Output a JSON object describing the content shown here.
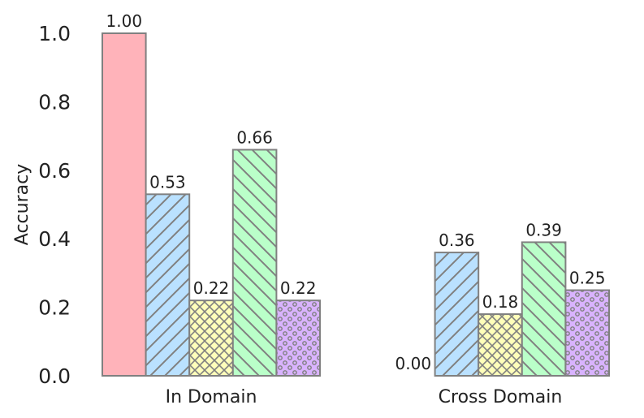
{
  "chart_data": {
    "type": "bar",
    "title": "",
    "xlabel": "",
    "ylabel": "Accuracy",
    "ylim": [
      0,
      1.0
    ],
    "yticks": [
      "0.0",
      "0.2",
      "0.4",
      "0.6",
      "0.8",
      "1.0"
    ],
    "grid": false,
    "legend": "none",
    "categories": [
      "In Domain",
      "Cross Domain"
    ],
    "series": [
      {
        "values": [
          1.0,
          0.0
        ],
        "labels": [
          "1.00",
          "0.00"
        ],
        "color": "#ffb3ba",
        "hatch": "none"
      },
      {
        "values": [
          0.53,
          0.36
        ],
        "labels": [
          "0.53",
          "0.36"
        ],
        "color": "#bae1ff",
        "hatch": "diagonal-forward"
      },
      {
        "values": [
          0.22,
          0.18
        ],
        "labels": [
          "0.22",
          "0.18"
        ],
        "color": "#ffffba",
        "hatch": "crosshatch"
      },
      {
        "values": [
          0.66,
          0.39
        ],
        "labels": [
          "0.66",
          "0.39"
        ],
        "color": "#baffc9",
        "hatch": "diagonal-back"
      },
      {
        "values": [
          0.22,
          0.25
        ],
        "labels": [
          "0.22",
          "0.25"
        ],
        "color": "#d9b3ff",
        "hatch": "dots"
      }
    ],
    "edge_color": "#808080",
    "hatch_color": "#808080"
  }
}
